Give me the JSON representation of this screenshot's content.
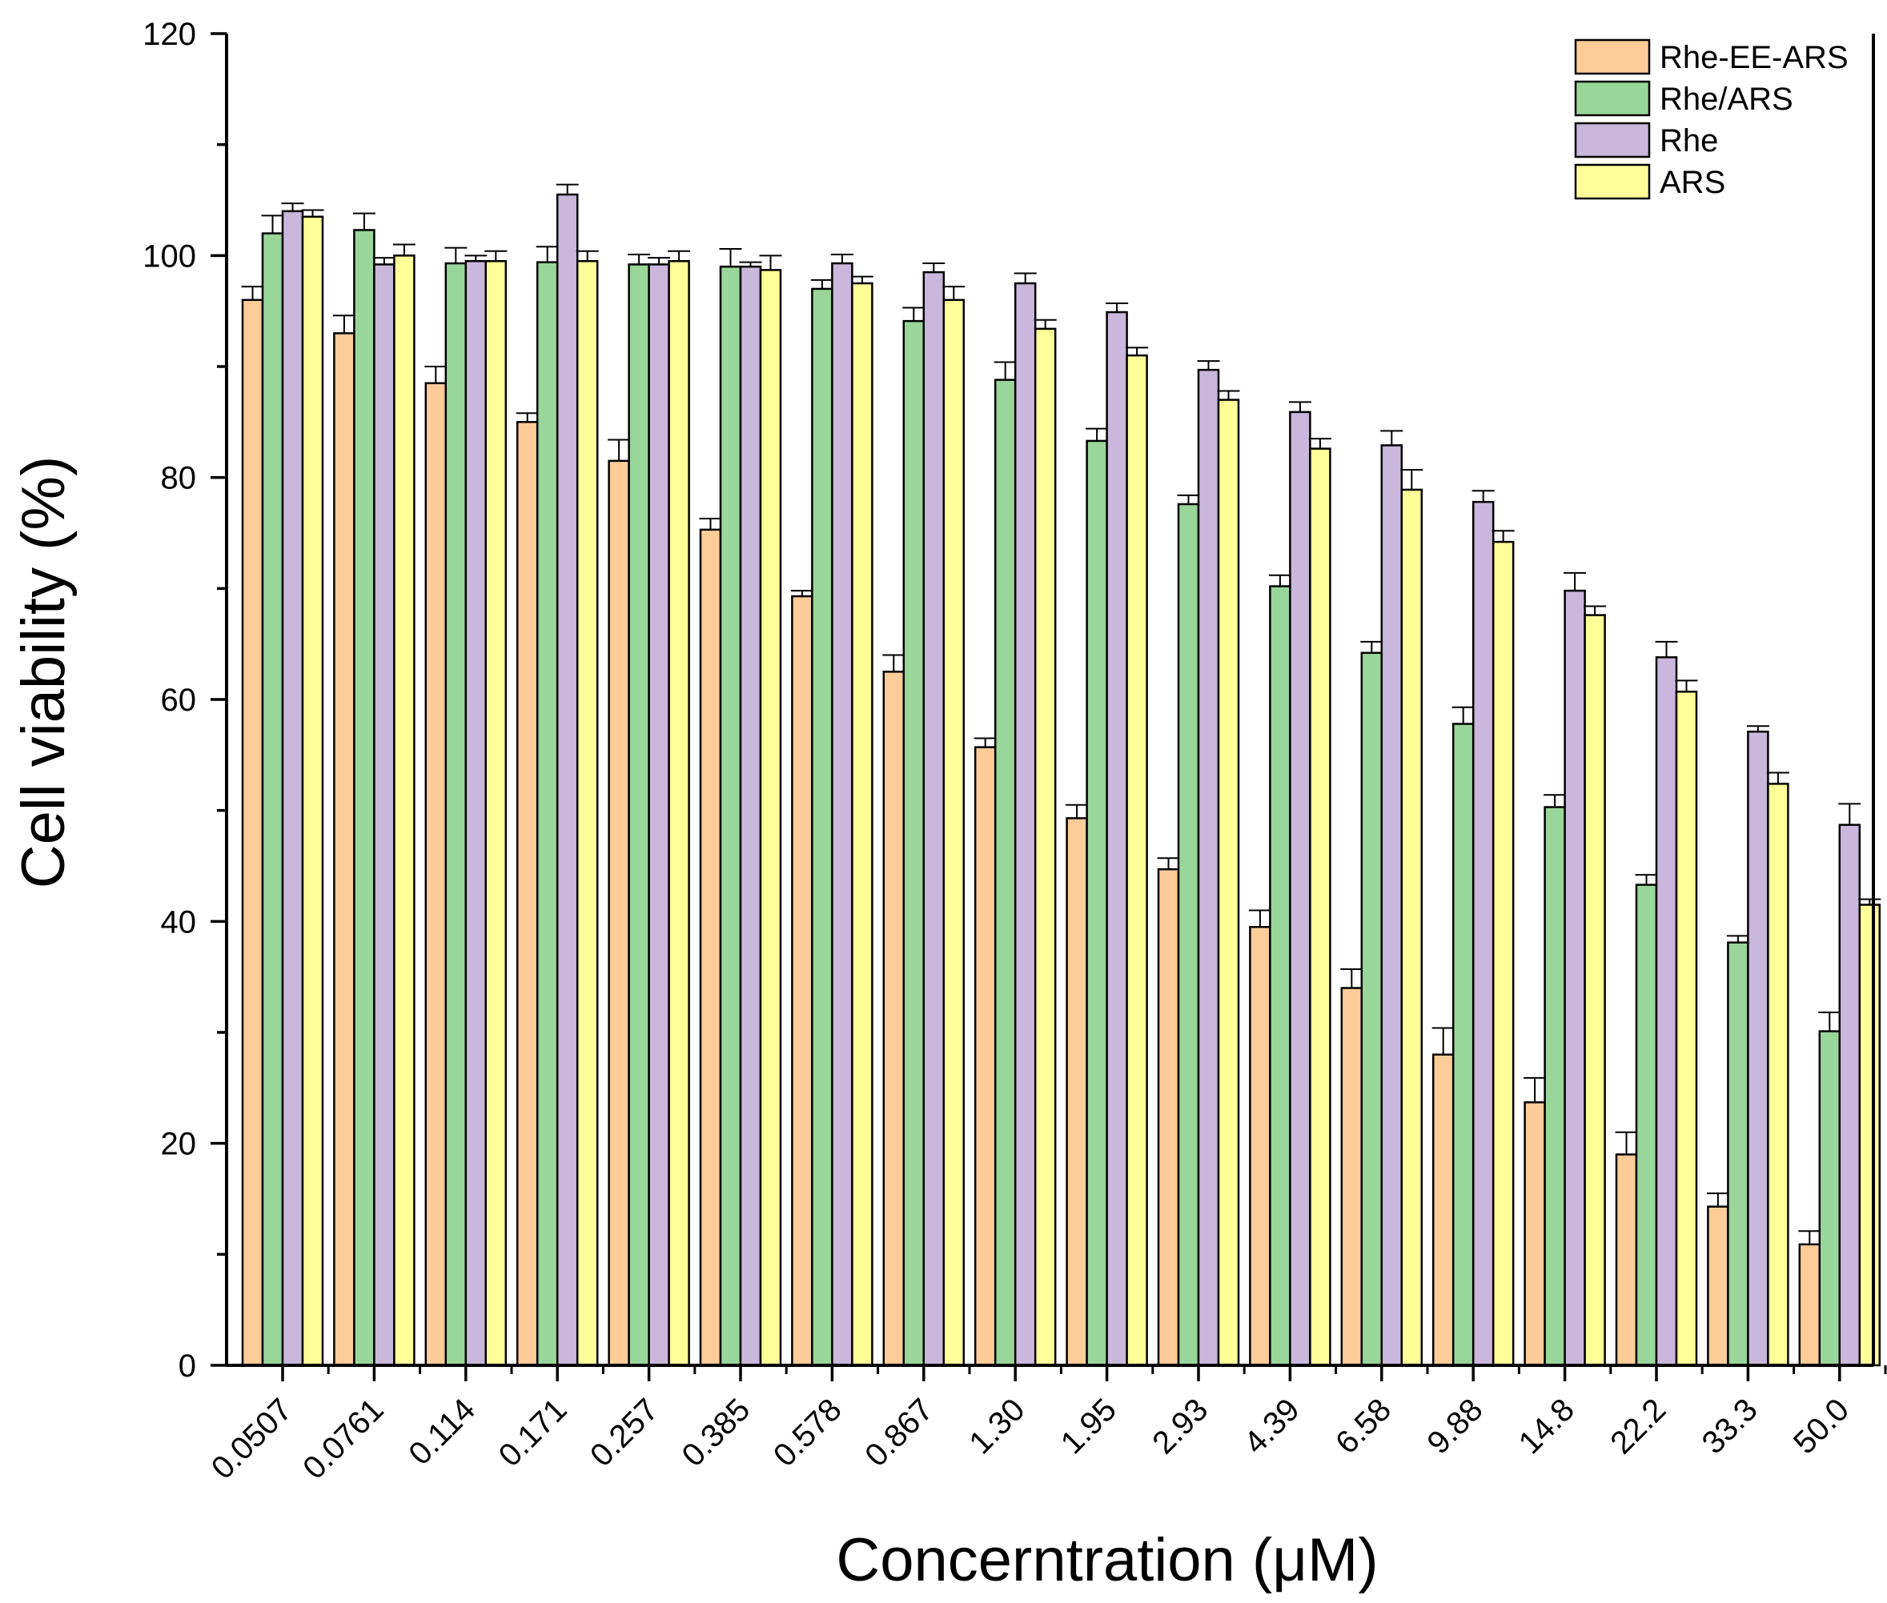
{
  "chart_data": {
    "type": "bar",
    "xlabel": "Concerntration (μM)",
    "ylabel": "Cell viability (%)",
    "ylim": [
      0,
      120
    ],
    "yticks": [
      0,
      20,
      40,
      60,
      80,
      100,
      120
    ],
    "legend_position": "top-right",
    "categories": [
      "0.0507",
      "0.0761",
      "0.114",
      "0.171",
      "0.257",
      "0.385",
      "0.578",
      "0.867",
      "1.30",
      "1.95",
      "2.93",
      "4.39",
      "6.58",
      "9.88",
      "14.8",
      "22.2",
      "33.3",
      "50.0"
    ],
    "series": [
      {
        "name": "Rhe-EE-ARS",
        "color": "#fdcc99",
        "values": [
          96,
          93,
          88.5,
          85,
          81.5,
          75.3,
          69.3,
          62.5,
          55.7,
          49.3,
          44.7,
          39.5,
          34,
          28,
          23.7,
          19,
          14.3,
          10.9
        ],
        "errors": [
          1.2,
          1.6,
          1.5,
          0.8,
          1.9,
          1.0,
          0.5,
          1.5,
          0.8,
          1.2,
          1.0,
          1.5,
          1.7,
          2.4,
          2.2,
          2.0,
          1.2,
          1.2
        ]
      },
      {
        "name": "Rhe/ARS",
        "color": "#99d699",
        "values": [
          102,
          102.3,
          99.3,
          99.4,
          99.2,
          99,
          97,
          94.1,
          88.8,
          83.3,
          77.6,
          70.2,
          64.2,
          57.8,
          50.3,
          43.3,
          38.1,
          30.1
        ],
        "errors": [
          1.6,
          1.5,
          1.4,
          1.4,
          0.9,
          1.6,
          0.8,
          1.2,
          1.6,
          1.1,
          0.8,
          1.0,
          1.0,
          1.5,
          1.1,
          0.9,
          0.6,
          1.7
        ]
      },
      {
        "name": "Rhe",
        "color": "#c9b8db",
        "values": [
          104,
          99.2,
          99.5,
          105.5,
          99.2,
          99,
          99.3,
          98.5,
          97.5,
          94.9,
          89.7,
          85.9,
          82.9,
          77.8,
          69.8,
          63.8,
          57.1,
          48.7
        ],
        "errors": [
          0.7,
          0.6,
          0.5,
          0.9,
          0.6,
          0.4,
          0.8,
          0.8,
          0.9,
          0.8,
          0.8,
          0.9,
          1.3,
          1.0,
          1.6,
          1.4,
          0.5,
          1.9
        ]
      },
      {
        "name": "ARS",
        "color": "#ffff99",
        "values": [
          103.5,
          100,
          99.5,
          99.5,
          99.5,
          98.7,
          97.5,
          96,
          93.4,
          91,
          87,
          82.6,
          78.9,
          74.2,
          67.6,
          60.7,
          52.4,
          41.5
        ],
        "errors": [
          0.6,
          1.0,
          0.9,
          0.9,
          0.9,
          1.3,
          0.6,
          1.2,
          0.8,
          0.7,
          0.8,
          0.9,
          1.8,
          1.0,
          0.8,
          1.0,
          1.0,
          0.5
        ]
      }
    ]
  }
}
